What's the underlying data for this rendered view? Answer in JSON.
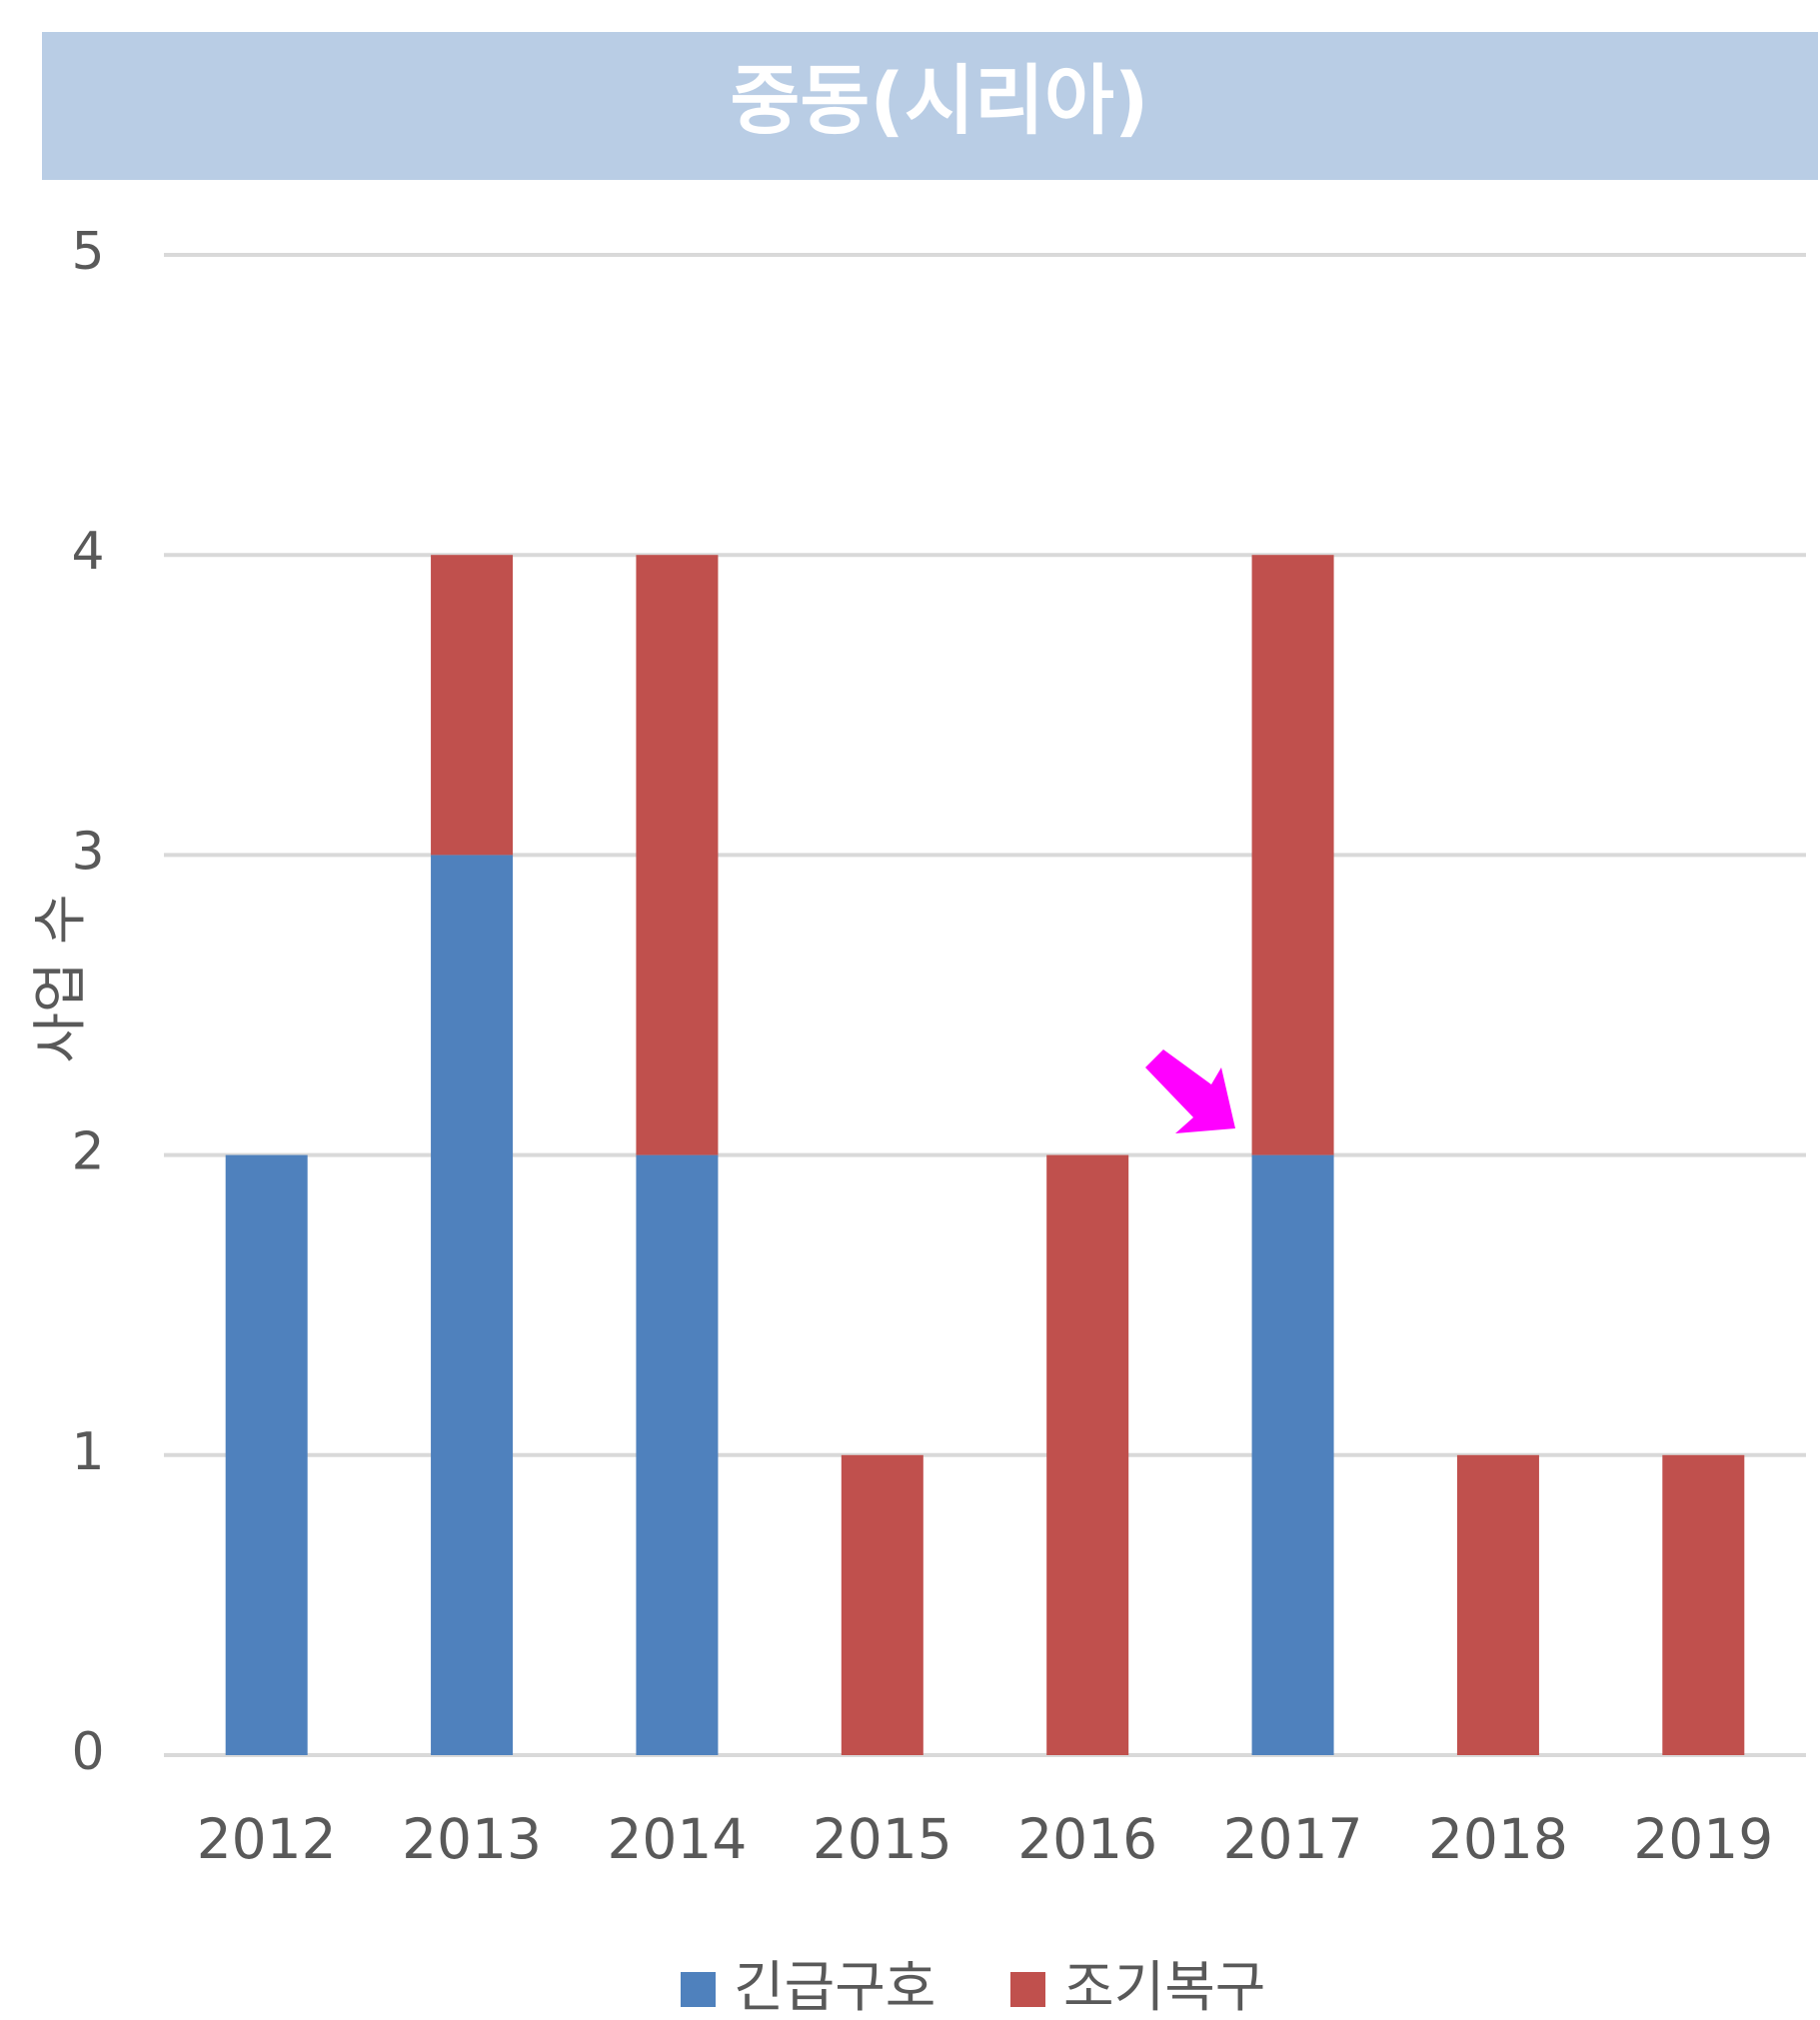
{
  "chart_data": {
    "type": "stacked_bar",
    "title": "중동(시리아)",
    "y_label": "사업 수",
    "categories": [
      "2012",
      "2013",
      "2014",
      "2015",
      "2016",
      "2017",
      "2018",
      "2019"
    ],
    "series": [
      {
        "name": "긴급구호",
        "color": "#4f81bd",
        "values": [
          2,
          3,
          2,
          0,
          0,
          2,
          0,
          0
        ]
      },
      {
        "name": "조기복구",
        "color": "#c0504d",
        "values": [
          0,
          1,
          2,
          1,
          2,
          2,
          1,
          1
        ]
      }
    ],
    "ylim": [
      0,
      5
    ],
    "yticks": [
      0,
      1,
      2,
      3,
      4,
      5
    ],
    "grid": true,
    "legend": "bottom"
  }
}
